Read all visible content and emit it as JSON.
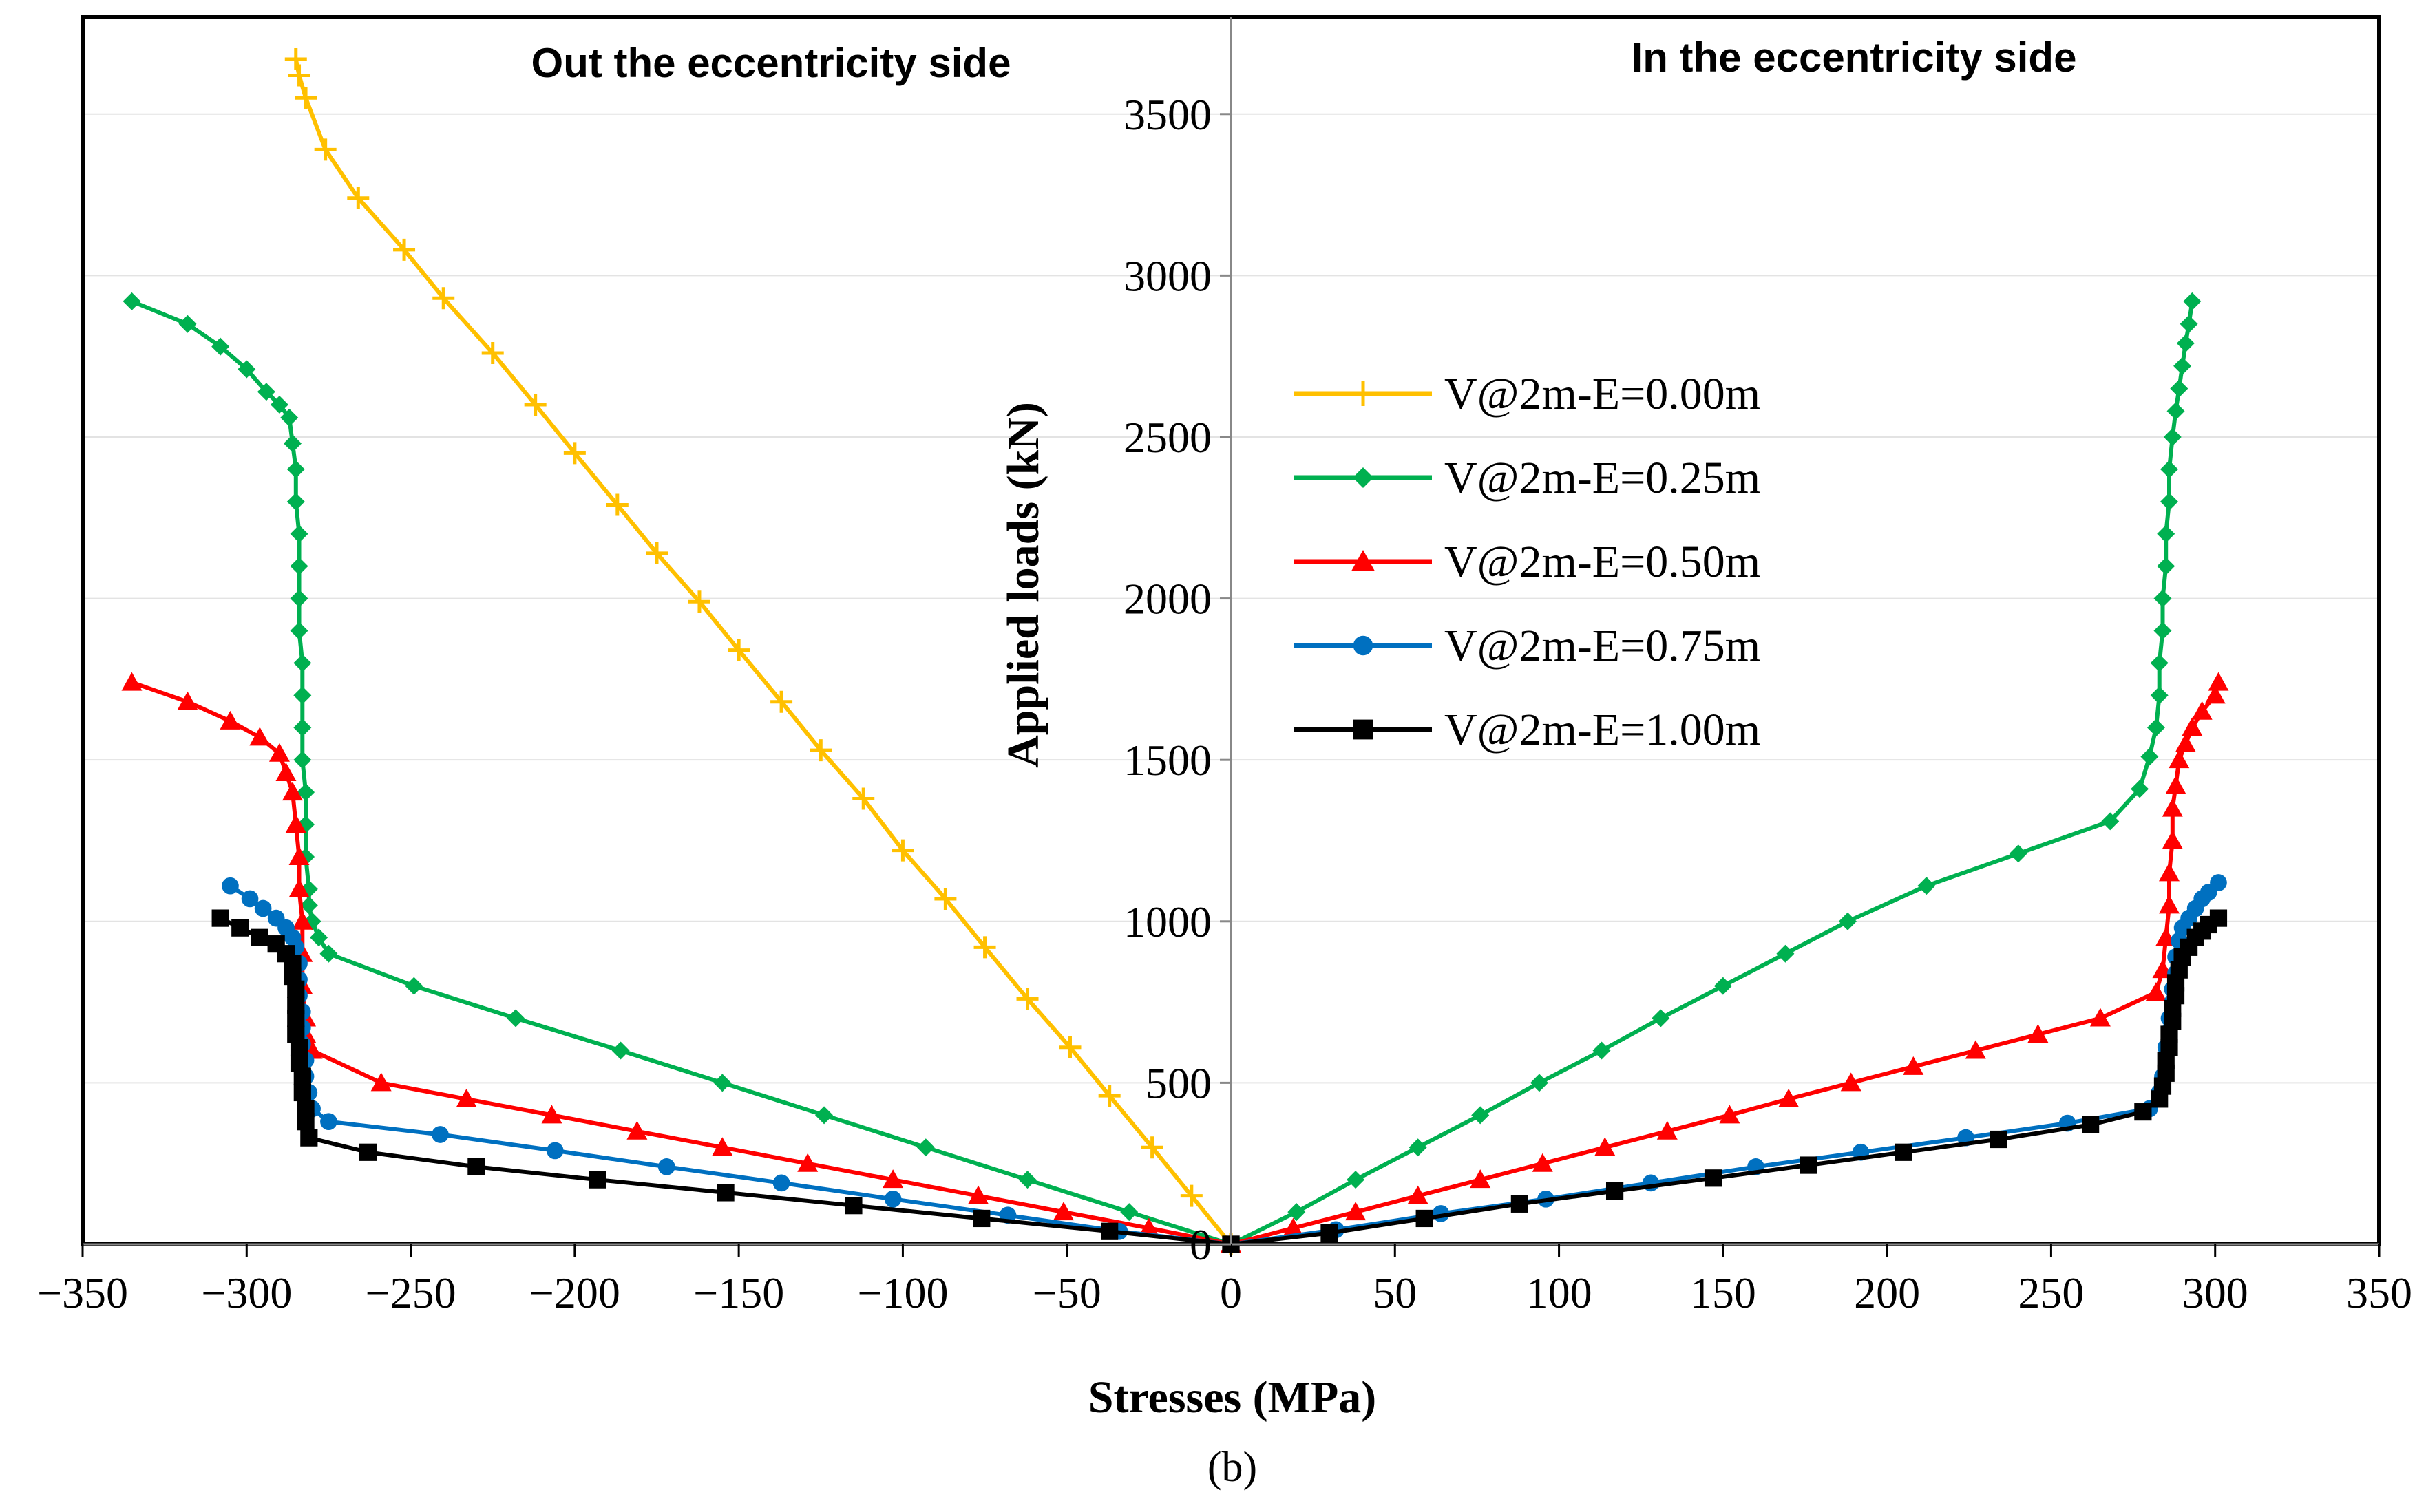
{
  "chart_data": {
    "type": "line",
    "xlabel": "Stresses (MPa)",
    "ylabel": "Applied loads (kN)",
    "xlim": [
      -350,
      350
    ],
    "ylim": [
      0,
      3800
    ],
    "xticks": [
      -350,
      -300,
      -250,
      -200,
      -150,
      -100,
      -50,
      0,
      50,
      100,
      150,
      200,
      250,
      300,
      350
    ],
    "xtick_labels": [
      "−350",
      "−300",
      "−250",
      "−200",
      "−150",
      "−100",
      "−50",
      "0",
      "50",
      "100",
      "150",
      "200",
      "250",
      "300",
      "350"
    ],
    "yticks": [
      0,
      500,
      1000,
      1500,
      2000,
      2500,
      3000,
      3500
    ],
    "ytick_labels": [
      "0",
      "500",
      "1000",
      "1500",
      "2000",
      "2500",
      "3000",
      "3500"
    ],
    "grid": "horizontal",
    "annotations": {
      "left": "Out the eccentricity side",
      "right": "In the eccentricity side"
    },
    "caption": "(b)",
    "legend_position": "center",
    "series": [
      {
        "name": "V@2m-E=0.00m",
        "color": "#FFC000",
        "marker": "plus",
        "left": [
          [
            0,
            0
          ],
          [
            -12,
            150
          ],
          [
            -24,
            300
          ],
          [
            -37,
            460
          ],
          [
            -49,
            610
          ],
          [
            -62,
            760
          ],
          [
            -75,
            920
          ],
          [
            -87,
            1070
          ],
          [
            -100,
            1220
          ],
          [
            -112,
            1380
          ],
          [
            -125,
            1530
          ],
          [
            -137,
            1680
          ],
          [
            -150,
            1840
          ],
          [
            -162,
            1990
          ],
          [
            -175,
            2140
          ],
          [
            -187,
            2290
          ],
          [
            -200,
            2450
          ],
          [
            -212,
            2600
          ],
          [
            -225,
            2760
          ],
          [
            -240,
            2930
          ],
          [
            -252,
            3080
          ],
          [
            -266,
            3240
          ],
          [
            -276,
            3390
          ],
          [
            -282,
            3550
          ],
          [
            -284,
            3620
          ],
          [
            -285,
            3670
          ]
        ],
        "right": []
      },
      {
        "name": "V@2m-E=0.25m",
        "color": "#00B050",
        "marker": "diamond",
        "left": [
          [
            0,
            0
          ],
          [
            -31,
            100
          ],
          [
            -62,
            200
          ],
          [
            -93,
            300
          ],
          [
            -124,
            400
          ],
          [
            -155,
            500
          ],
          [
            -186,
            600
          ],
          [
            -218,
            700
          ],
          [
            -249,
            800
          ],
          [
            -275,
            900
          ],
          [
            -278,
            950
          ],
          [
            -280,
            1000
          ],
          [
            -281,
            1050
          ],
          [
            -281,
            1100
          ],
          [
            -282,
            1200
          ],
          [
            -282,
            1300
          ],
          [
            -282,
            1400
          ],
          [
            -283,
            1500
          ],
          [
            -283,
            1600
          ],
          [
            -283,
            1700
          ],
          [
            -283,
            1800
          ],
          [
            -284,
            1900
          ],
          [
            -284,
            2000
          ],
          [
            -284,
            2100
          ],
          [
            -284,
            2200
          ],
          [
            -285,
            2300
          ],
          [
            -285,
            2400
          ],
          [
            -286,
            2480
          ],
          [
            -287,
            2560
          ],
          [
            -290,
            2600
          ],
          [
            -294,
            2640
          ],
          [
            -300,
            2710
          ],
          [
            -308,
            2780
          ],
          [
            -318,
            2850
          ],
          [
            -335,
            2920
          ]
        ],
        "right": [
          [
            0,
            0
          ],
          [
            20,
            100
          ],
          [
            38,
            200
          ],
          [
            57,
            300
          ],
          [
            76,
            400
          ],
          [
            94,
            500
          ],
          [
            113,
            600
          ],
          [
            131,
            700
          ],
          [
            150,
            800
          ],
          [
            169,
            900
          ],
          [
            188,
            1000
          ],
          [
            212,
            1110
          ],
          [
            240,
            1210
          ],
          [
            268,
            1310
          ],
          [
            277,
            1410
          ],
          [
            280,
            1510
          ],
          [
            282,
            1600
          ],
          [
            283,
            1700
          ],
          [
            283,
            1800
          ],
          [
            284,
            1900
          ],
          [
            284,
            2000
          ],
          [
            285,
            2100
          ],
          [
            285,
            2200
          ],
          [
            286,
            2300
          ],
          [
            286,
            2400
          ],
          [
            287,
            2500
          ],
          [
            288,
            2580
          ],
          [
            289,
            2650
          ],
          [
            290,
            2720
          ],
          [
            291,
            2790
          ],
          [
            292,
            2850
          ],
          [
            293,
            2920
          ]
        ]
      },
      {
        "name": "V@2m-E=0.50m",
        "color": "#FF0000",
        "marker": "triangle",
        "left": [
          [
            0,
            0
          ],
          [
            -25,
            50
          ],
          [
            -51,
            100
          ],
          [
            -77,
            150
          ],
          [
            -103,
            200
          ],
          [
            -129,
            250
          ],
          [
            -155,
            300
          ],
          [
            -181,
            350
          ],
          [
            -207,
            400
          ],
          [
            -233,
            450
          ],
          [
            -259,
            500
          ],
          [
            -280,
            600
          ],
          [
            -282,
            650
          ],
          [
            -282,
            700
          ],
          [
            -283,
            800
          ],
          [
            -283,
            900
          ],
          [
            -283,
            1000
          ],
          [
            -284,
            1100
          ],
          [
            -284,
            1200
          ],
          [
            -285,
            1300
          ],
          [
            -286,
            1400
          ],
          [
            -288,
            1460
          ],
          [
            -290,
            1520
          ],
          [
            -296,
            1570
          ],
          [
            -305,
            1620
          ],
          [
            -318,
            1680
          ],
          [
            -335,
            1740
          ]
        ],
        "right": [
          [
            0,
            0
          ],
          [
            19,
            50
          ],
          [
            38,
            100
          ],
          [
            57,
            150
          ],
          [
            76,
            200
          ],
          [
            95,
            250
          ],
          [
            114,
            300
          ],
          [
            133,
            350
          ],
          [
            152,
            400
          ],
          [
            170,
            450
          ],
          [
            189,
            500
          ],
          [
            208,
            550
          ],
          [
            227,
            600
          ],
          [
            246,
            650
          ],
          [
            265,
            700
          ],
          [
            282,
            780
          ],
          [
            284,
            850
          ],
          [
            285,
            950
          ],
          [
            286,
            1050
          ],
          [
            286,
            1150
          ],
          [
            287,
            1250
          ],
          [
            287,
            1350
          ],
          [
            288,
            1420
          ],
          [
            289,
            1500
          ],
          [
            291,
            1550
          ],
          [
            293,
            1600
          ],
          [
            296,
            1650
          ],
          [
            300,
            1700
          ],
          [
            301,
            1740
          ]
        ]
      },
      {
        "name": "V@2m-E=0.75m",
        "color": "#0070C0",
        "marker": "circle",
        "left": [
          [
            0,
            0
          ],
          [
            -34,
            40
          ],
          [
            -68,
            90
          ],
          [
            -103,
            140
          ],
          [
            -137,
            190
          ],
          [
            -172,
            240
          ],
          [
            -206,
            290
          ],
          [
            -241,
            340
          ],
          [
            -275,
            380
          ],
          [
            -280,
            420
          ],
          [
            -281,
            470
          ],
          [
            -282,
            520
          ],
          [
            -282,
            570
          ],
          [
            -283,
            620
          ],
          [
            -283,
            670
          ],
          [
            -283,
            720
          ],
          [
            -284,
            770
          ],
          [
            -284,
            820
          ],
          [
            -284,
            870
          ],
          [
            -285,
            920
          ],
          [
            -286,
            950
          ],
          [
            -288,
            980
          ],
          [
            -291,
            1010
          ],
          [
            -295,
            1040
          ],
          [
            -299,
            1070
          ],
          [
            -305,
            1110
          ]
        ],
        "right": [
          [
            0,
            0
          ],
          [
            32,
            45
          ],
          [
            64,
            95
          ],
          [
            96,
            140
          ],
          [
            128,
            190
          ],
          [
            160,
            240
          ],
          [
            192,
            285
          ],
          [
            224,
            330
          ],
          [
            255,
            375
          ],
          [
            280,
            420
          ],
          [
            283,
            470
          ],
          [
            284,
            520
          ],
          [
            285,
            560
          ],
          [
            285,
            610
          ],
          [
            286,
            660
          ],
          [
            286,
            700
          ],
          [
            287,
            750
          ],
          [
            287,
            790
          ],
          [
            288,
            840
          ],
          [
            288,
            890
          ],
          [
            289,
            940
          ],
          [
            290,
            980
          ],
          [
            292,
            1010
          ],
          [
            294,
            1040
          ],
          [
            296,
            1070
          ],
          [
            298,
            1090
          ],
          [
            301,
            1120
          ]
        ]
      },
      {
        "name": "V@2m-E=1.00m",
        "color": "#000000",
        "marker": "square",
        "left": [
          [
            0,
            0
          ],
          [
            -37,
            40
          ],
          [
            -76,
            80
          ],
          [
            -115,
            120
          ],
          [
            -154,
            160
          ],
          [
            -193,
            200
          ],
          [
            -230,
            240
          ],
          [
            -263,
            285
          ],
          [
            -281,
            330
          ],
          [
            -282,
            380
          ],
          [
            -282,
            420
          ],
          [
            -283,
            470
          ],
          [
            -283,
            520
          ],
          [
            -284,
            560
          ],
          [
            -284,
            610
          ],
          [
            -285,
            650
          ],
          [
            -285,
            700
          ],
          [
            -285,
            740
          ],
          [
            -285,
            790
          ],
          [
            -286,
            830
          ],
          [
            -286,
            870
          ],
          [
            -288,
            900
          ],
          [
            -291,
            930
          ],
          [
            -296,
            950
          ],
          [
            -302,
            980
          ],
          [
            -308,
            1010
          ]
        ],
        "right": [
          [
            0,
            0
          ],
          [
            30,
            35
          ],
          [
            59,
            80
          ],
          [
            88,
            125
          ],
          [
            117,
            165
          ],
          [
            147,
            205
          ],
          [
            176,
            245
          ],
          [
            205,
            285
          ],
          [
            234,
            325
          ],
          [
            262,
            370
          ],
          [
            278,
            410
          ],
          [
            283,
            450
          ],
          [
            284,
            490
          ],
          [
            285,
            530
          ],
          [
            285,
            570
          ],
          [
            286,
            610
          ],
          [
            286,
            650
          ],
          [
            287,
            690
          ],
          [
            287,
            730
          ],
          [
            288,
            770
          ],
          [
            288,
            810
          ],
          [
            289,
            850
          ],
          [
            290,
            890
          ],
          [
            292,
            920
          ],
          [
            294,
            950
          ],
          [
            296,
            970
          ],
          [
            298,
            990
          ],
          [
            301,
            1010
          ]
        ]
      }
    ]
  }
}
